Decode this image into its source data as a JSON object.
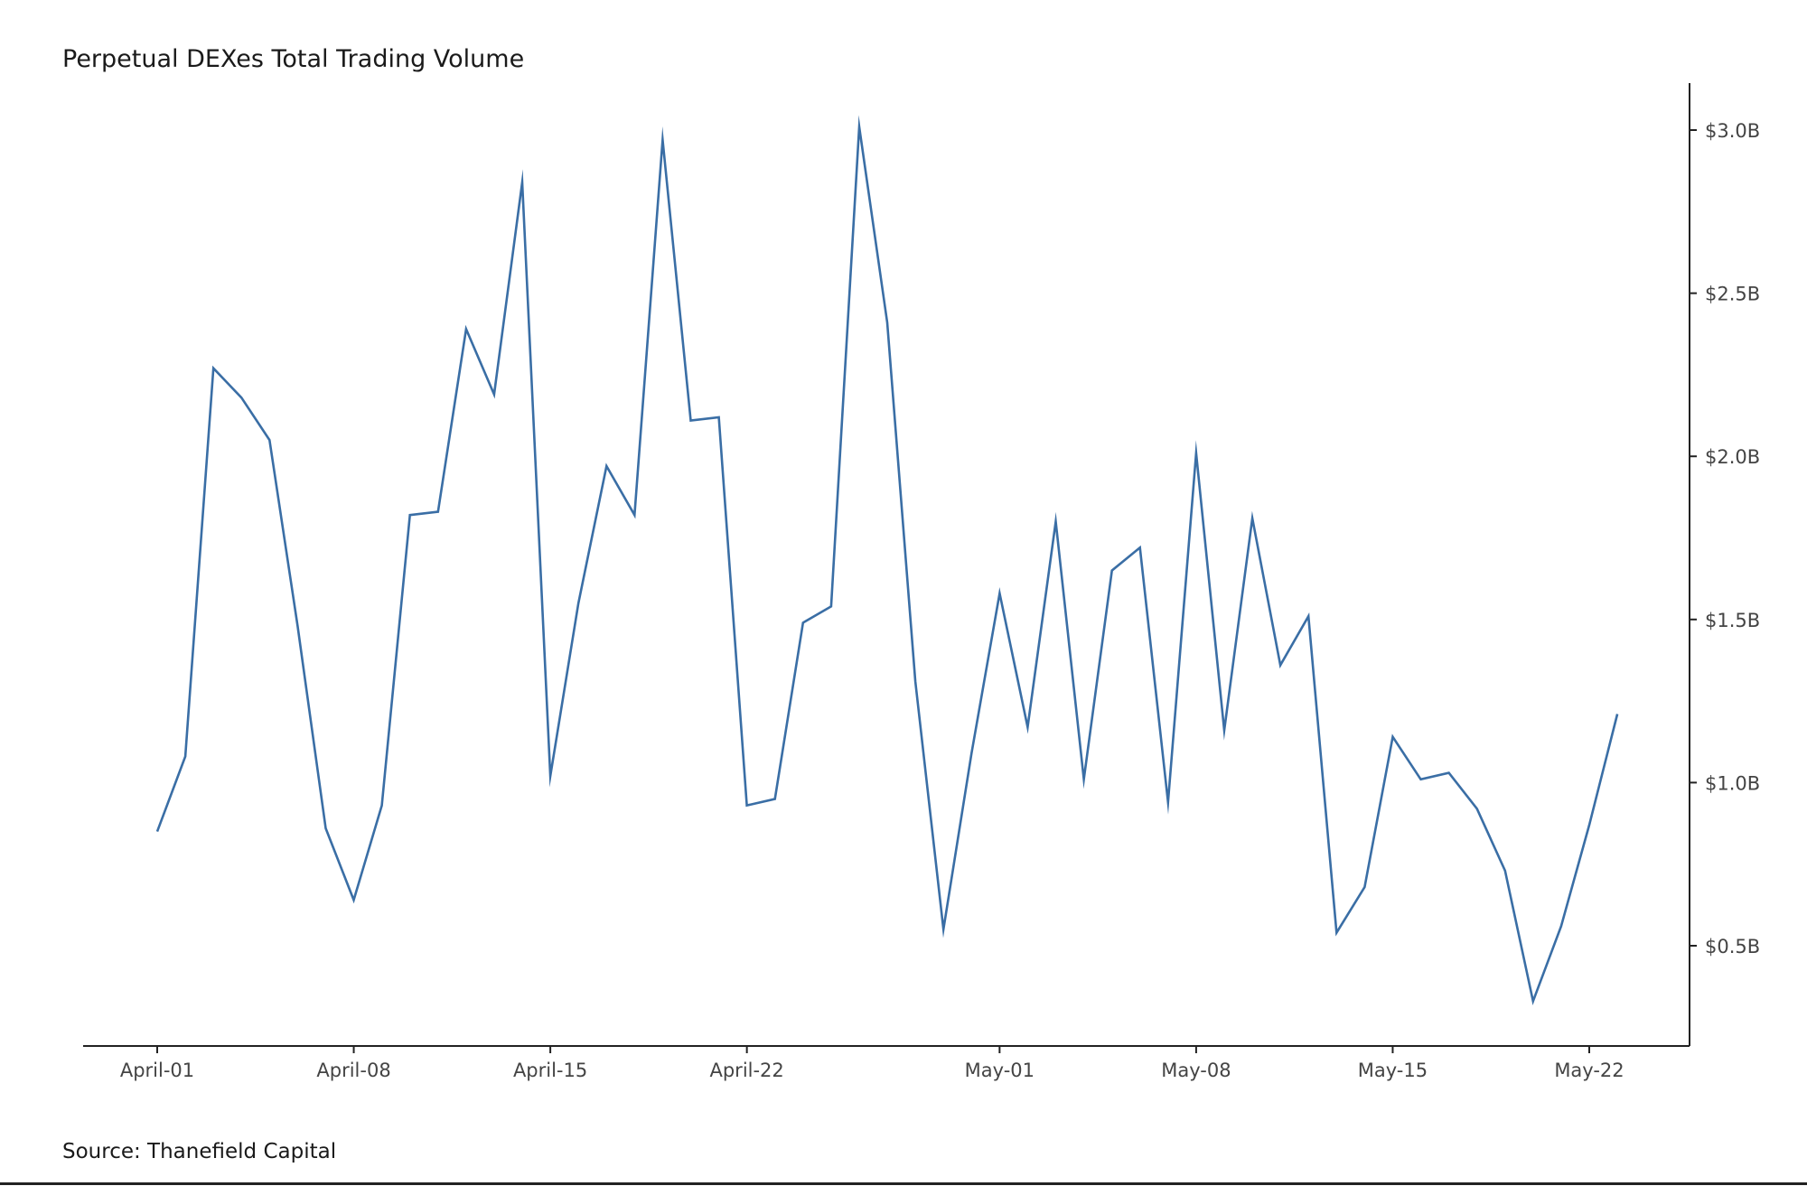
{
  "chart_data": {
    "type": "line",
    "title": "Perpetual DEXes Total Trading Volume",
    "source": "Source: Thanefield Capital",
    "xlabel": "",
    "ylabel": "",
    "y_axis_position": "right",
    "grid": false,
    "legend": "none",
    "line_color": "#3a6ea5",
    "axis_color": "#222222",
    "x_start": "2024-04-01",
    "x_ticks": [
      {
        "date": "2024-04-01",
        "label": "April-01"
      },
      {
        "date": "2024-04-08",
        "label": "April-08"
      },
      {
        "date": "2024-04-15",
        "label": "April-15"
      },
      {
        "date": "2024-04-22",
        "label": "April-22"
      },
      {
        "date": "2024-05-01",
        "label": "May-01"
      },
      {
        "date": "2024-05-08",
        "label": "May-08"
      },
      {
        "date": "2024-05-15",
        "label": "May-15"
      },
      {
        "date": "2024-05-22",
        "label": "May-22"
      }
    ],
    "y_ticks": [
      {
        "value": 0.5,
        "label": "$0.5B"
      },
      {
        "value": 1.0,
        "label": "$1.0B"
      },
      {
        "value": 1.5,
        "label": "$1.5B"
      },
      {
        "value": 2.0,
        "label": "$2.0B"
      },
      {
        "value": 2.5,
        "label": "$2.5B"
      },
      {
        "value": 3.0,
        "label": "$3.0B"
      }
    ],
    "x_range": [
      "2024-03-29",
      "2024-05-25"
    ],
    "ylim": [
      0.19,
      3.14
    ],
    "series": [
      {
        "x": [
          "2024-04-01",
          "2024-04-02",
          "2024-04-03",
          "2024-04-04",
          "2024-04-05",
          "2024-04-06",
          "2024-04-07",
          "2024-04-08",
          "2024-04-09",
          "2024-04-10",
          "2024-04-11",
          "2024-04-12",
          "2024-04-13",
          "2024-04-14",
          "2024-04-15",
          "2024-04-16",
          "2024-04-17",
          "2024-04-18",
          "2024-04-19",
          "2024-04-20",
          "2024-04-21",
          "2024-04-22",
          "2024-04-23",
          "2024-04-24",
          "2024-04-25",
          "2024-04-26",
          "2024-04-27",
          "2024-04-28",
          "2024-04-29",
          "2024-04-30",
          "2024-05-01",
          "2024-05-02",
          "2024-05-03",
          "2024-05-04",
          "2024-05-05",
          "2024-05-06",
          "2024-05-07",
          "2024-05-08",
          "2024-05-09",
          "2024-05-10",
          "2024-05-11",
          "2024-05-12",
          "2024-05-13",
          "2024-05-14",
          "2024-05-15",
          "2024-05-16",
          "2024-05-17",
          "2024-05-18",
          "2024-05-19",
          "2024-05-20",
          "2024-05-21",
          "2024-05-22",
          "2024-05-23"
        ],
        "values": [
          0.85,
          1.08,
          2.27,
          2.18,
          2.05,
          1.48,
          0.86,
          0.64,
          0.93,
          1.82,
          1.83,
          2.39,
          2.19,
          2.84,
          1.02,
          1.55,
          1.97,
          1.82,
          2.97,
          2.11,
          2.12,
          0.93,
          0.95,
          1.49,
          1.54,
          3.01,
          2.41,
          1.31,
          0.55,
          1.09,
          1.58,
          1.17,
          1.8,
          1.01,
          1.65,
          1.72,
          0.94,
          2.01,
          1.16,
          1.81,
          1.36,
          1.51,
          0.54,
          0.68,
          1.14,
          1.01,
          1.03,
          0.92,
          0.73,
          0.33,
          0.56,
          0.87,
          1.21
        ]
      }
    ]
  }
}
